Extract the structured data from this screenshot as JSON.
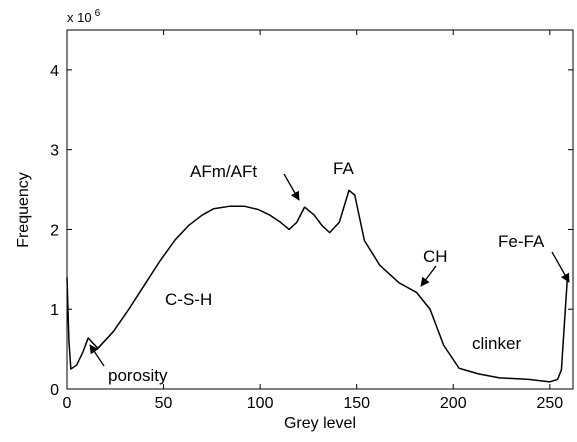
{
  "chart_data": {
    "type": "line",
    "xlabel": "Grey level",
    "ylabel": "Frequency",
    "y_multiplier": {
      "base": "x 10",
      "exponent": "6"
    },
    "x": [
      0,
      1,
      2,
      5,
      8,
      11,
      14,
      16,
      24,
      32,
      40,
      48,
      56,
      63,
      70,
      76,
      84,
      92,
      99,
      105,
      110,
      115,
      119,
      123,
      128,
      132,
      136,
      141,
      146,
      149,
      154,
      162,
      172,
      181,
      188,
      195,
      203,
      213,
      224,
      239,
      250,
      254,
      256,
      259
    ],
    "series": [
      {
        "name": "Frequency",
        "color": "#000000",
        "values": [
          1.4,
          0.6,
          0.25,
          0.3,
          0.45,
          0.64,
          0.56,
          0.51,
          0.72,
          1.0,
          1.3,
          1.6,
          1.87,
          2.05,
          2.18,
          2.26,
          2.29,
          2.29,
          2.25,
          2.18,
          2.1,
          2.0,
          2.09,
          2.28,
          2.18,
          2.05,
          1.96,
          2.09,
          2.49,
          2.43,
          1.86,
          1.55,
          1.33,
          1.21,
          1.0,
          0.55,
          0.26,
          0.19,
          0.14,
          0.12,
          0.09,
          0.12,
          0.24,
          1.36
        ]
      }
    ],
    "xlim": [
      0,
      262
    ],
    "ylim": [
      0,
      4.5
    ],
    "xticks": [
      0,
      50,
      100,
      150,
      200,
      250
    ],
    "yticks": [
      0,
      1,
      2,
      3,
      4
    ],
    "annotations": [
      "porosity",
      "C-S-H",
      "AFm/AFt",
      "FA",
      "CH",
      "Fe-FA",
      "clinker"
    ]
  }
}
